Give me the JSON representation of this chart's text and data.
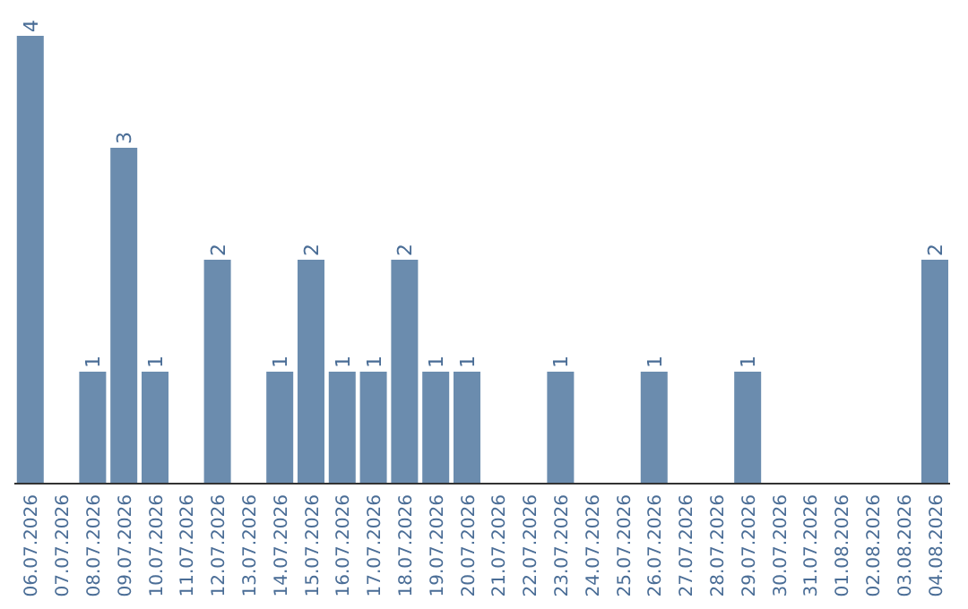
{
  "chart_data": {
    "type": "bar",
    "categories": [
      "06.07.2026",
      "07.07.2026",
      "08.07.2026",
      "09.07.2026",
      "10.07.2026",
      "11.07.2026",
      "12.07.2026",
      "13.07.2026",
      "14.07.2026",
      "15.07.2026",
      "16.07.2026",
      "17.07.2026",
      "18.07.2026",
      "19.07.2026",
      "20.07.2026",
      "21.07.2026",
      "22.07.2026",
      "23.07.2026",
      "24.07.2026",
      "25.07.2026",
      "26.07.2026",
      "27.07.2026",
      "28.07.2026",
      "29.07.2026",
      "30.07.2026",
      "31.07.2026",
      "01.08.2026",
      "02.08.2026",
      "03.08.2026",
      "04.08.2026"
    ],
    "values": [
      4,
      0,
      1,
      3,
      1,
      0,
      2,
      0,
      1,
      2,
      1,
      1,
      2,
      1,
      1,
      0,
      0,
      1,
      0,
      0,
      1,
      0,
      0,
      1,
      0,
      0,
      0,
      0,
      0,
      2
    ],
    "value_labels": [
      "4",
      null,
      "1",
      "3",
      "1",
      null,
      "2",
      null,
      "1",
      "2",
      "1",
      "1",
      "2",
      "1",
      "1",
      null,
      null,
      "1",
      null,
      null,
      "1",
      null,
      null,
      "1",
      null,
      null,
      null,
      null,
      null,
      "2"
    ],
    "color": "#6b8cae",
    "grid": false,
    "legend": false
  }
}
